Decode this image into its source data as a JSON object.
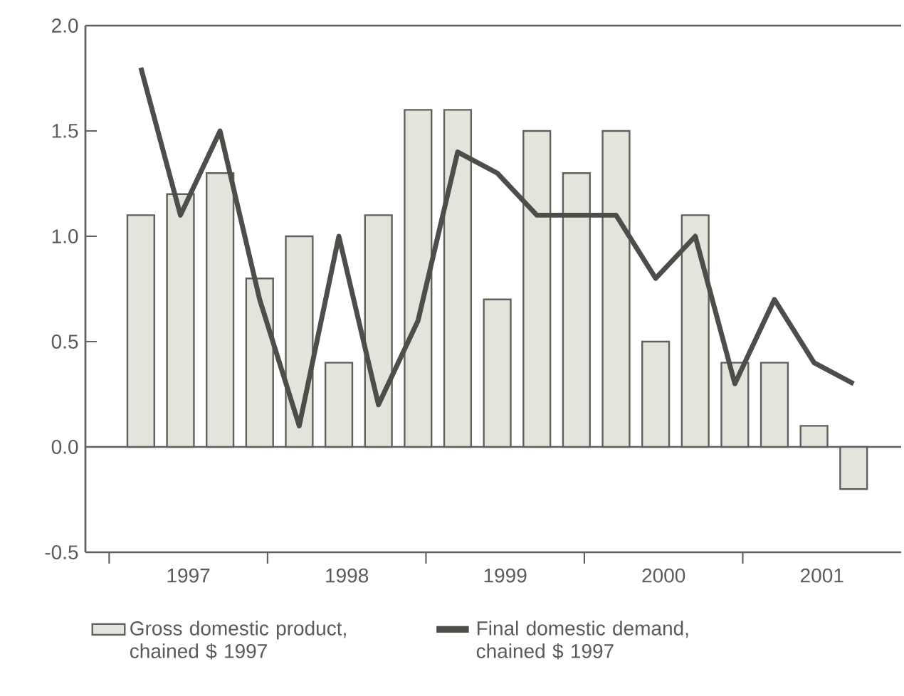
{
  "chart_data": {
    "type": "bar",
    "x": [
      1997.2,
      1997.45,
      1997.7,
      1997.95,
      1998.2,
      1998.45,
      1998.7,
      1998.95,
      1999.2,
      1999.45,
      1999.7,
      1999.95,
      2000.2,
      2000.45,
      2000.7,
      2000.95,
      2001.2,
      2001.45,
      2001.7
    ],
    "series": [
      {
        "name": "Gross domestic product, chained $ 1997",
        "color": "#e3e5dd",
        "values": [
          1.1,
          1.2,
          1.3,
          0.8,
          1.0,
          0.4,
          1.1,
          1.6,
          1.6,
          0.7,
          1.5,
          1.3,
          1.5,
          0.5,
          1.1,
          0.4,
          0.4,
          0.1,
          -0.2
        ]
      },
      {
        "name": "Final domestic demand, chained $ 1997",
        "type": "line",
        "color": "#4b4e49",
        "values": [
          1.8,
          1.1,
          1.5,
          0.7,
          0.1,
          1.0,
          0.2,
          0.6,
          1.4,
          1.3,
          1.1,
          1.1,
          1.1,
          0.8,
          1.0,
          0.3,
          0.7,
          0.4,
          0.3
        ]
      }
    ],
    "xlim": [
      1996.85,
      2002.0
    ],
    "xticks": [
      {
        "value": 1997,
        "label": null
      },
      {
        "value": 1998,
        "label": null
      },
      {
        "value": 1999,
        "label": null
      },
      {
        "value": 2000,
        "label": null
      },
      {
        "value": 2001,
        "label": null
      },
      {
        "value": 1997.5,
        "label": "1997"
      },
      {
        "value": 1998.5,
        "label": "1998"
      },
      {
        "value": 1999.5,
        "label": "1999"
      },
      {
        "value": 2000.5,
        "label": "2000"
      },
      {
        "value": 2001.5,
        "label": "2001"
      }
    ],
    "ylim": [
      -0.5,
      2.0
    ],
    "yticks": [
      {
        "value": -0.5,
        "label": "-0.5"
      },
      {
        "value": 0,
        "label": "0.0"
      },
      {
        "value": 0.5,
        "label": "0.5"
      },
      {
        "value": 1.0,
        "label": "1.0"
      },
      {
        "value": 1.5,
        "label": "1.5"
      },
      {
        "value": 2.0,
        "label": "2.0"
      }
    ],
    "ref_lines": [
      {
        "axis": "y",
        "value": 0,
        "color": "#5f625c"
      }
    ],
    "legend": "bottom",
    "marker": "none",
    "line_style": "solid"
  }
}
